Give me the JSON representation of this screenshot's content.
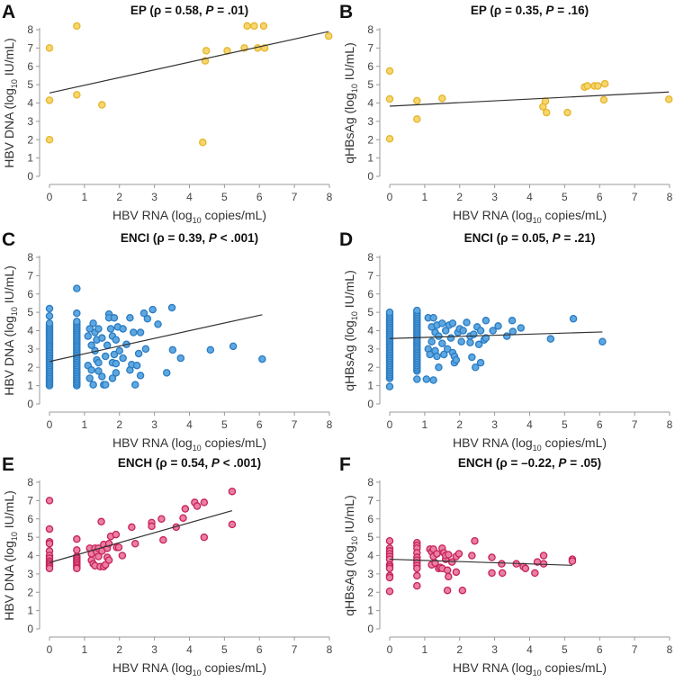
{
  "chart_data": [
    {
      "type": "scatter",
      "letter": "A",
      "title": {
        "pre": "EP (ρ = 0.58, ",
        "p": "P",
        "post": " = .01)"
      },
      "xlabel": {
        "pre": "HBV RNA (log",
        "sub": "10",
        "post": " copies/mL)"
      },
      "ylabel": {
        "pre": "HBV DNA (log",
        "sub": "10",
        "post": " IU/mL)"
      },
      "xlim": [
        0,
        8
      ],
      "ylim": [
        0,
        8
      ],
      "ticks": [
        0,
        1,
        2,
        3,
        4,
        5,
        6,
        7,
        8
      ],
      "color": {
        "fill": "#f6d66e",
        "stroke": "#e6b52c"
      },
      "fit": [
        [
          0,
          4.55
        ],
        [
          7.98,
          7.9
        ]
      ],
      "columns": [],
      "points": [
        [
          0,
          7
        ],
        [
          0,
          4.15
        ],
        [
          0,
          2
        ],
        [
          0.78,
          8.2
        ],
        [
          0.78,
          4.45
        ],
        [
          1.5,
          3.9
        ],
        [
          4.38,
          1.85
        ],
        [
          4.45,
          6.3
        ],
        [
          4.48,
          6.85
        ],
        [
          5.08,
          6.85
        ],
        [
          5.57,
          7
        ],
        [
          5.65,
          8.2
        ],
        [
          5.85,
          8.2
        ],
        [
          5.95,
          7
        ],
        [
          6.12,
          8.2
        ],
        [
          6.15,
          7
        ],
        [
          7.98,
          7.65
        ]
      ]
    },
    {
      "type": "scatter",
      "letter": "B",
      "title": {
        "pre": "EP (ρ = 0.35, ",
        "p": "P",
        "post": " = .16)"
      },
      "xlabel": {
        "pre": "HBV RNA (log",
        "sub": "10",
        "post": " copies/mL)"
      },
      "ylabel": {
        "pre": "qHBsAg (log",
        "sub": "10",
        "post": " IU/mL)"
      },
      "xlim": [
        0,
        8
      ],
      "ylim": [
        0,
        8
      ],
      "ticks": [
        0,
        1,
        2,
        3,
        4,
        5,
        6,
        7,
        8
      ],
      "color": {
        "fill": "#f6d66e",
        "stroke": "#e6b52c"
      },
      "fit": [
        [
          0,
          3.83
        ],
        [
          7.98,
          4.6
        ]
      ],
      "columns": [],
      "points": [
        [
          0,
          5.75
        ],
        [
          0,
          4.22
        ],
        [
          0,
          2.05
        ],
        [
          0.78,
          4.12
        ],
        [
          0.78,
          3.12
        ],
        [
          1.5,
          4.25
        ],
        [
          4.38,
          3.8
        ],
        [
          4.45,
          4.1
        ],
        [
          4.48,
          3.48
        ],
        [
          5.08,
          3.48
        ],
        [
          5.57,
          4.87
        ],
        [
          5.65,
          4.93
        ],
        [
          5.85,
          4.93
        ],
        [
          5.95,
          4.93
        ],
        [
          6.12,
          4.17
        ],
        [
          6.15,
          5.05
        ],
        [
          7.98,
          4.2
        ]
      ]
    },
    {
      "type": "scatter",
      "letter": "C",
      "title": {
        "pre": "ENCI (ρ = 0.39, ",
        "p": "P",
        "post": " < .001)"
      },
      "xlabel": {
        "pre": "HBV RNA (log",
        "sub": "10",
        "post": " copies/mL)"
      },
      "ylabel": {
        "pre": "HBV DNA (log",
        "sub": "10",
        "post": " IU/mL)"
      },
      "xlim": [
        0,
        8
      ],
      "ylim": [
        0,
        8
      ],
      "ticks": [
        0,
        1,
        2,
        3,
        4,
        5,
        6,
        7,
        8
      ],
      "color": {
        "fill": "#5ea8e2",
        "stroke": "#2b7cc2"
      },
      "fit": [
        [
          0,
          2.32
        ],
        [
          6.08,
          4.87
        ]
      ],
      "columns": [
        {
          "x": 0,
          "from": 1.0,
          "to": 4.4,
          "step": 0.1,
          "extra": [
            4.8,
            5.2
          ]
        },
        {
          "x": 0.78,
          "from": 1.0,
          "to": 4.5,
          "step": 0.1,
          "extra": [
            4.95,
            6.3
          ]
        }
      ],
      "points": [
        [
          1.1,
          2.1
        ],
        [
          1.15,
          1.4
        ],
        [
          1.2,
          1.85
        ],
        [
          1.1,
          3.7
        ],
        [
          1.2,
          3.2
        ],
        [
          1.15,
          4.1
        ],
        [
          1.25,
          4.4
        ],
        [
          1.3,
          3.9
        ],
        [
          1.35,
          3.5
        ],
        [
          1.4,
          4.1
        ],
        [
          1.3,
          2.9
        ],
        [
          1.35,
          2.4
        ],
        [
          1.4,
          2.25
        ],
        [
          1.25,
          1.05
        ],
        [
          1.4,
          1.8
        ],
        [
          1.5,
          1.5
        ],
        [
          1.5,
          3.6
        ],
        [
          1.55,
          1.05
        ],
        [
          1.6,
          1.05
        ],
        [
          1.6,
          2.6
        ],
        [
          1.65,
          3.2
        ],
        [
          1.7,
          4.9
        ],
        [
          1.7,
          4.7
        ],
        [
          1.75,
          4.1
        ],
        [
          1.8,
          1.4
        ],
        [
          1.8,
          2.25
        ],
        [
          1.85,
          2.7
        ],
        [
          1.8,
          3.7
        ],
        [
          1.85,
          4.7
        ],
        [
          1.9,
          2.2
        ],
        [
          1.9,
          1.7
        ],
        [
          1.9,
          3.5
        ],
        [
          1.95,
          4.2
        ],
        [
          2.0,
          2.9
        ],
        [
          2.1,
          4.1
        ],
        [
          2.1,
          2.5
        ],
        [
          2.2,
          3.25
        ],
        [
          2.3,
          1.85
        ],
        [
          2.3,
          4.7
        ],
        [
          2.35,
          2.15
        ],
        [
          2.4,
          3.9
        ],
        [
          2.45,
          1.05
        ],
        [
          2.5,
          2.1
        ],
        [
          2.55,
          2.75
        ],
        [
          2.6,
          1.55
        ],
        [
          2.6,
          3.9
        ],
        [
          2.7,
          4.95
        ],
        [
          2.75,
          3.0
        ],
        [
          2.8,
          4.65
        ],
        [
          2.95,
          5.15
        ],
        [
          3.1,
          4.35
        ],
        [
          3.35,
          1.7
        ],
        [
          3.5,
          5.25
        ],
        [
          3.52,
          2.95
        ],
        [
          3.75,
          2.5
        ],
        [
          4.6,
          2.95
        ],
        [
          5.25,
          3.15
        ],
        [
          6.08,
          2.45
        ]
      ]
    },
    {
      "type": "scatter",
      "letter": "D",
      "title": {
        "pre": "ENCI (ρ = 0.05, ",
        "p": "P",
        "post": " = .21)"
      },
      "xlabel": {
        "pre": "HBV RNA (log",
        "sub": "10",
        "post": " copies/mL)"
      },
      "ylabel": {
        "pre": "qHBsAg (log",
        "sub": "10",
        "post": " IU/mL)"
      },
      "xlim": [
        0,
        8
      ],
      "ylim": [
        0,
        8
      ],
      "ticks": [
        0,
        1,
        2,
        3,
        4,
        5,
        6,
        7,
        8
      ],
      "color": {
        "fill": "#5ea8e2",
        "stroke": "#2b7cc2"
      },
      "fit": [
        [
          0,
          3.57
        ],
        [
          6.08,
          3.93
        ]
      ],
      "columns": [
        {
          "x": 0,
          "from": 1.4,
          "to": 5.0,
          "step": 0.1,
          "extra": [
            0.95
          ]
        },
        {
          "x": 0.78,
          "from": 1.8,
          "to": 5.1,
          "step": 0.1,
          "extra": [
            1.35
          ]
        }
      ],
      "points": [
        [
          1.05,
          1.35
        ],
        [
          1.25,
          1.3
        ],
        [
          1.1,
          4.7
        ],
        [
          1.25,
          4.7
        ],
        [
          1.1,
          3.0
        ],
        [
          1.15,
          2.7
        ],
        [
          1.2,
          3.4
        ],
        [
          1.2,
          4.2
        ],
        [
          1.3,
          3.9
        ],
        [
          1.3,
          2.9
        ],
        [
          1.35,
          2.6
        ],
        [
          1.35,
          4.3
        ],
        [
          1.4,
          2.0
        ],
        [
          1.4,
          3.7
        ],
        [
          1.5,
          4.4
        ],
        [
          1.5,
          3.3
        ],
        [
          1.55,
          2.7
        ],
        [
          1.6,
          4.0
        ],
        [
          1.65,
          3.0
        ],
        [
          1.7,
          4.3
        ],
        [
          1.75,
          3.6
        ],
        [
          1.8,
          4.4
        ],
        [
          1.8,
          2.8
        ],
        [
          1.85,
          2.6
        ],
        [
          1.85,
          2.25
        ],
        [
          1.9,
          2.4
        ],
        [
          1.95,
          3.9
        ],
        [
          2.0,
          4.1
        ],
        [
          2.05,
          3.4
        ],
        [
          2.1,
          4.0
        ],
        [
          2.2,
          4.45
        ],
        [
          2.3,
          3.35
        ],
        [
          2.3,
          3.7
        ],
        [
          2.35,
          2.55
        ],
        [
          2.4,
          3.8
        ],
        [
          2.45,
          2.0
        ],
        [
          2.5,
          4.2
        ],
        [
          2.55,
          3.25
        ],
        [
          2.6,
          2.25
        ],
        [
          2.6,
          4.0
        ],
        [
          2.7,
          3.5
        ],
        [
          2.75,
          4.55
        ],
        [
          2.75,
          3.6
        ],
        [
          2.95,
          4.0
        ],
        [
          3.1,
          4.25
        ],
        [
          3.35,
          3.7
        ],
        [
          3.5,
          4.55
        ],
        [
          3.52,
          3.95
        ],
        [
          3.75,
          4.15
        ],
        [
          4.6,
          3.55
        ],
        [
          5.25,
          4.65
        ],
        [
          6.08,
          3.4
        ]
      ]
    },
    {
      "type": "scatter",
      "letter": "E",
      "title": {
        "pre": "ENCH (ρ = 0.54, ",
        "p": "P",
        "post": " < .001)"
      },
      "xlabel": {
        "pre": "HBV RNA (log",
        "sub": "10",
        "post": " copies/mL)"
      },
      "ylabel": {
        "pre": "HBV DNA (log",
        "sub": "10",
        "post": " IU/mL)"
      },
      "xlim": [
        0,
        8
      ],
      "ylim": [
        0,
        8
      ],
      "ticks": [
        0,
        1,
        2,
        3,
        4,
        5,
        6,
        7,
        8
      ],
      "color": {
        "fill": "#ea7fa3",
        "stroke": "#c62358"
      },
      "fit": [
        [
          0,
          3.62
        ],
        [
          5.22,
          6.45
        ]
      ],
      "columns": [],
      "points": [
        [
          0,
          7.0
        ],
        [
          0,
          5.45
        ],
        [
          0,
          4.75
        ],
        [
          0,
          4.65
        ],
        [
          0,
          4.25
        ],
        [
          0,
          4.0
        ],
        [
          0,
          3.85
        ],
        [
          0,
          3.7
        ],
        [
          0,
          3.6
        ],
        [
          0,
          3.5
        ],
        [
          0,
          3.4
        ],
        [
          0,
          3.3
        ],
        [
          0.78,
          4.9
        ],
        [
          0.78,
          4.3
        ],
        [
          0.78,
          3.95
        ],
        [
          0.78,
          3.85
        ],
        [
          0.78,
          3.75
        ],
        [
          0.78,
          3.65
        ],
        [
          0.78,
          3.55
        ],
        [
          0.78,
          3.45
        ],
        [
          0.78,
          3.35
        ],
        [
          0.78,
          3.3
        ],
        [
          1.15,
          4.4
        ],
        [
          1.2,
          4.1
        ],
        [
          1.2,
          3.75
        ],
        [
          1.25,
          3.55
        ],
        [
          1.3,
          4.4
        ],
        [
          1.3,
          3.45
        ],
        [
          1.35,
          4.2
        ],
        [
          1.4,
          4.4
        ],
        [
          1.4,
          3.95
        ],
        [
          1.45,
          3.4
        ],
        [
          1.48,
          5.85
        ],
        [
          1.5,
          4.25
        ],
        [
          1.55,
          3.4
        ],
        [
          1.55,
          4.6
        ],
        [
          1.6,
          3.5
        ],
        [
          1.65,
          3.9
        ],
        [
          1.65,
          4.4
        ],
        [
          1.7,
          4.65
        ],
        [
          1.7,
          3.75
        ],
        [
          1.75,
          5.05
        ],
        [
          1.9,
          5.15
        ],
        [
          1.92,
          4.45
        ],
        [
          1.98,
          4.45
        ],
        [
          2.08,
          4.0
        ],
        [
          2.35,
          5.55
        ],
        [
          2.45,
          4.65
        ],
        [
          2.92,
          5.8
        ],
        [
          2.92,
          5.6
        ],
        [
          3.2,
          6.0
        ],
        [
          3.25,
          4.85
        ],
        [
          3.62,
          5.55
        ],
        [
          3.82,
          6.05
        ],
        [
          3.88,
          6.55
        ],
        [
          4.15,
          6.9
        ],
        [
          4.22,
          6.7
        ],
        [
          4.42,
          6.9
        ],
        [
          4.42,
          5.0
        ],
        [
          5.22,
          7.5
        ],
        [
          5.22,
          5.7
        ]
      ]
    },
    {
      "type": "scatter",
      "letter": "F",
      "title": {
        "pre": "ENCH (ρ = –0.22, ",
        "p": "P",
        "post": " = .05)"
      },
      "xlabel": {
        "pre": "HBV RNA (log",
        "sub": "10",
        "post": " copies/mL)"
      },
      "ylabel": {
        "pre": "qHBsAg (log",
        "sub": "10",
        "post": " IU/mL)"
      },
      "xlim": [
        0,
        8
      ],
      "ylim": [
        0,
        8
      ],
      "ticks": [
        0,
        1,
        2,
        3,
        4,
        5,
        6,
        7,
        8
      ],
      "color": {
        "fill": "#ea7fa3",
        "stroke": "#c62358"
      },
      "fit": [
        [
          0,
          3.8
        ],
        [
          5.22,
          3.47
        ]
      ],
      "columns": [],
      "points": [
        [
          0,
          4.8
        ],
        [
          0,
          4.4
        ],
        [
          0,
          4.25
        ],
        [
          0,
          4.1
        ],
        [
          0,
          3.95
        ],
        [
          0,
          3.8
        ],
        [
          0,
          3.5
        ],
        [
          0,
          3.4
        ],
        [
          0,
          3.3
        ],
        [
          0,
          2.9
        ],
        [
          0,
          2.8
        ],
        [
          0,
          2.05
        ],
        [
          0.78,
          4.7
        ],
        [
          0.78,
          4.55
        ],
        [
          0.78,
          4.4
        ],
        [
          0.78,
          4.15
        ],
        [
          0.78,
          3.9
        ],
        [
          0.78,
          3.75
        ],
        [
          0.78,
          3.6
        ],
        [
          0.78,
          3.45
        ],
        [
          0.78,
          3.3
        ],
        [
          0.78,
          2.9
        ],
        [
          0.78,
          2.35
        ],
        [
          1.15,
          4.35
        ],
        [
          1.2,
          3.5
        ],
        [
          1.2,
          4.2
        ],
        [
          1.25,
          4.35
        ],
        [
          1.25,
          3.95
        ],
        [
          1.3,
          3.6
        ],
        [
          1.35,
          4.1
        ],
        [
          1.4,
          3.3
        ],
        [
          1.45,
          3.35
        ],
        [
          1.5,
          4.4
        ],
        [
          1.5,
          3.3
        ],
        [
          1.55,
          4.15
        ],
        [
          1.6,
          3.8
        ],
        [
          1.6,
          4.0
        ],
        [
          1.65,
          3.2
        ],
        [
          1.65,
          2.1
        ],
        [
          1.68,
          2.85
        ],
        [
          1.68,
          4.05
        ],
        [
          1.78,
          3.65
        ],
        [
          1.9,
          3.95
        ],
        [
          1.9,
          3.1
        ],
        [
          1.98,
          4.1
        ],
        [
          2.08,
          2.1
        ],
        [
          2.35,
          4.0
        ],
        [
          2.43,
          4.8
        ],
        [
          2.92,
          3.9
        ],
        [
          2.92,
          3.05
        ],
        [
          3.2,
          3.55
        ],
        [
          3.22,
          3.05
        ],
        [
          3.62,
          3.55
        ],
        [
          3.82,
          3.4
        ],
        [
          3.88,
          3.3
        ],
        [
          4.15,
          3.05
        ],
        [
          4.22,
          3.65
        ],
        [
          4.4,
          4.0
        ],
        [
          4.4,
          3.55
        ],
        [
          5.22,
          3.8
        ],
        [
          5.22,
          3.7
        ]
      ]
    }
  ]
}
